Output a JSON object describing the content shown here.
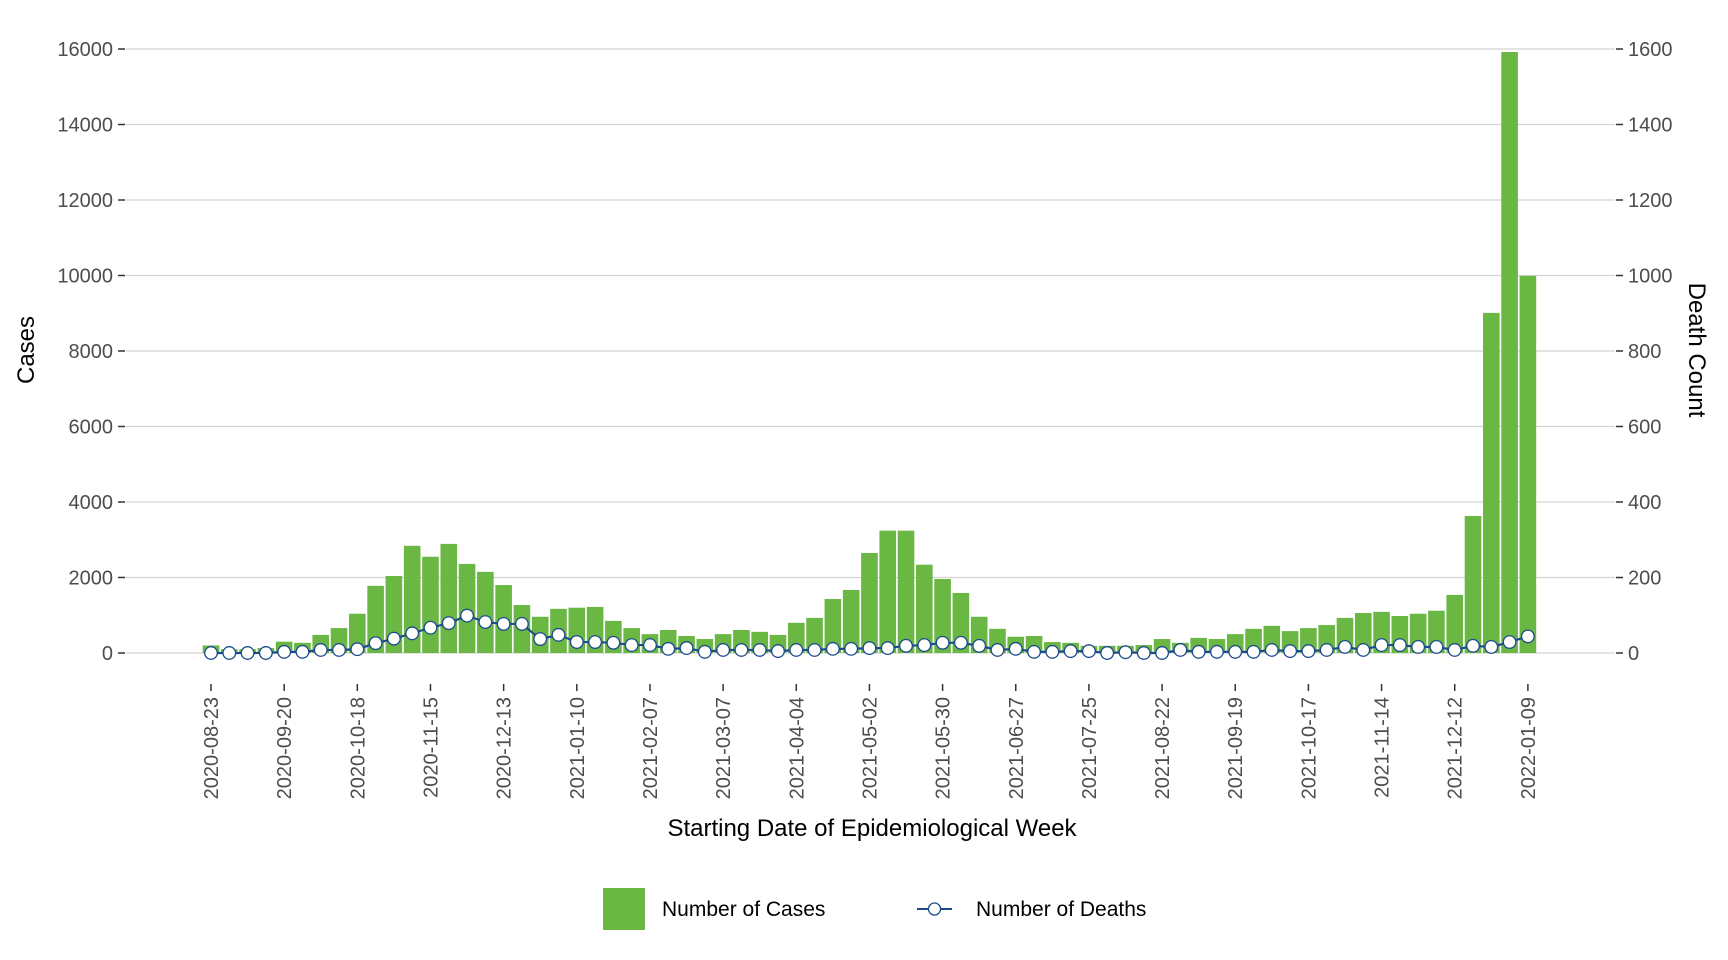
{
  "chart_data": {
    "type": "bar",
    "title": "",
    "xlabel": "Starting Date of Epidemiological Week",
    "ylabel": "Cases",
    "ylabel_right": "Death Count",
    "ylim": [
      0,
      16000
    ],
    "ylim_right": [
      0,
      1600
    ],
    "yticks": [
      0,
      2000,
      4000,
      6000,
      8000,
      10000,
      12000,
      14000,
      16000
    ],
    "yticks_right": [
      0,
      200,
      400,
      600,
      800,
      1000,
      1200,
      1400,
      1600
    ],
    "grid": true,
    "legend_position": "bottom",
    "x_start": "2020-08-23",
    "x_step_days": 7,
    "x_tick_every": 4,
    "x_tick_labels": [
      "2020-08-23",
      "2020-09-20",
      "2020-10-18",
      "2020-11-15",
      "2020-12-13",
      "2021-01-10",
      "2021-02-07",
      "2021-03-07",
      "2021-04-04",
      "2021-05-02",
      "2021-05-30",
      "2021-06-27",
      "2021-07-25",
      "2021-08-22",
      "2021-09-19",
      "2021-10-17",
      "2021-11-14",
      "2021-12-12",
      "2022-01-09"
    ],
    "series": [
      {
        "name": "Number of Cases",
        "type": "bar",
        "axis": "left",
        "color": "#6ab744",
        "values": [
          200,
          100,
          100,
          130,
          300,
          270,
          480,
          660,
          1040,
          1780,
          2040,
          2840,
          2550,
          2890,
          2360,
          2150,
          1800,
          1270,
          960,
          1170,
          1200,
          1220,
          850,
          660,
          500,
          610,
          450,
          370,
          500,
          610,
          560,
          480,
          800,
          930,
          1430,
          1670,
          2650,
          3240,
          3240,
          2340,
          1960,
          1590,
          960,
          640,
          430,
          450,
          290,
          270,
          190,
          190,
          190,
          210,
          370,
          270,
          400,
          370,
          500,
          640,
          720,
          580,
          660,
          740,
          930,
          1060,
          1090,
          980,
          1040,
          1120,
          1540,
          3630,
          9010,
          15920,
          9990
        ]
      },
      {
        "name": "Number of Deaths",
        "type": "line",
        "axis": "right",
        "color": "#1c4b8c",
        "marker_fill": "#ffffff",
        "values": [
          0,
          0,
          0,
          0,
          3,
          3,
          8,
          8,
          10,
          26,
          38,
          52,
          67,
          79,
          99,
          82,
          77,
          77,
          37,
          48,
          29,
          29,
          27,
          21,
          21,
          11,
          13,
          3,
          8,
          8,
          8,
          5,
          8,
          8,
          11,
          11,
          13,
          13,
          19,
          21,
          27,
          27,
          19,
          8,
          11,
          3,
          3,
          5,
          5,
          0,
          2,
          0,
          0,
          8,
          3,
          3,
          3,
          3,
          8,
          5,
          5,
          8,
          16,
          8,
          21,
          21,
          16,
          16,
          8,
          19,
          16,
          29,
          44
        ]
      }
    ]
  },
  "colors": {
    "grid": "#d3d3d3",
    "tick": "#333333",
    "tick_label": "#4d4d4d"
  }
}
